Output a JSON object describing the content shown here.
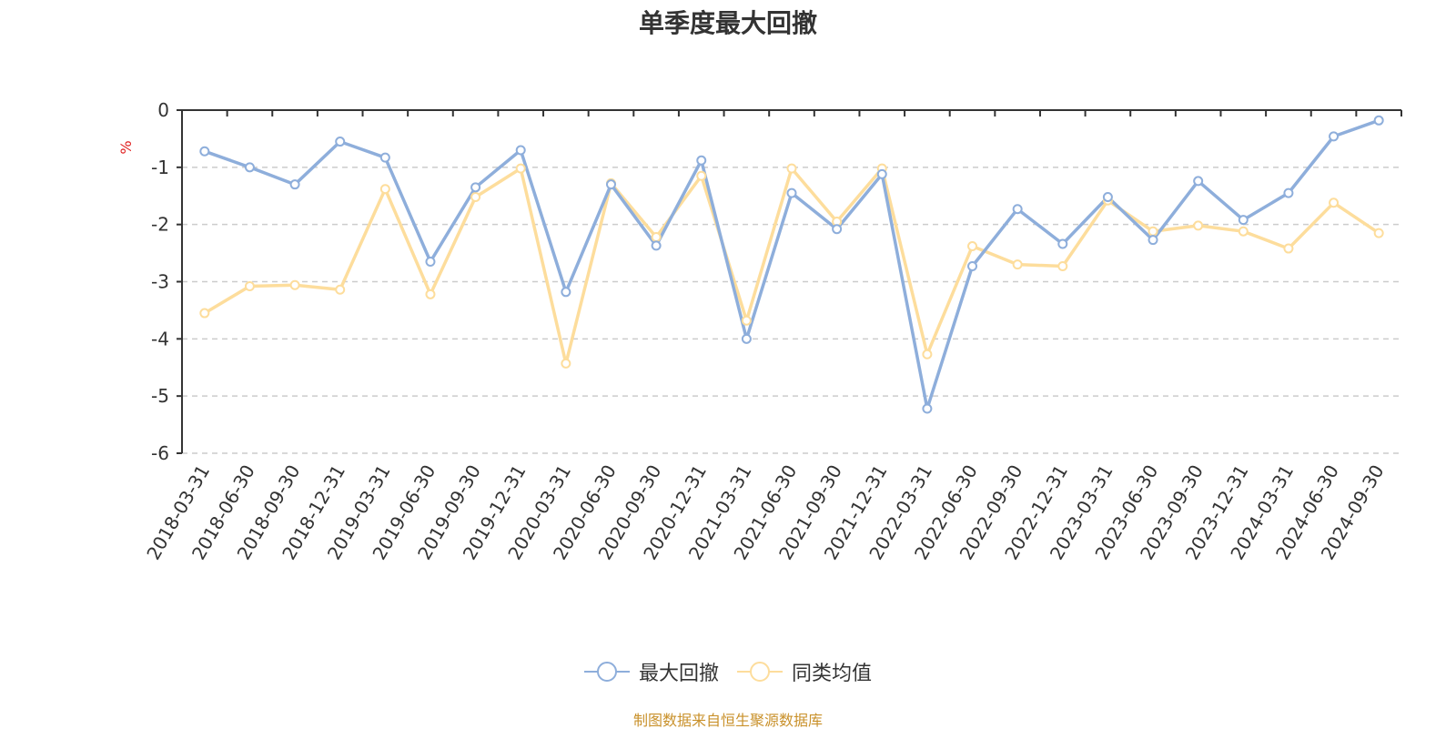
{
  "chart_data": {
    "type": "line",
    "title": "单季度最大回撤",
    "ylabel": "%",
    "ylim": [
      -6,
      0
    ],
    "yticks": [
      "0",
      "-1",
      "-2",
      "-3",
      "-4",
      "-5",
      "-6"
    ],
    "grid": true,
    "legend_position": "bottom",
    "categories": [
      "2018-03-31",
      "2018-06-30",
      "2018-09-30",
      "2018-12-31",
      "2019-03-31",
      "2019-06-30",
      "2019-09-30",
      "2019-12-31",
      "2020-03-31",
      "2020-06-30",
      "2020-09-30",
      "2020-12-31",
      "2021-03-31",
      "2021-06-30",
      "2021-09-30",
      "2021-12-31",
      "2022-03-31",
      "2022-06-30",
      "2022-09-30",
      "2022-12-31",
      "2023-03-31",
      "2023-06-30",
      "2023-09-30",
      "2023-12-31",
      "2024-03-31",
      "2024-06-30",
      "2024-09-30"
    ],
    "series": [
      {
        "name": "最大回撤",
        "color": "#8eaedb",
        "values": [
          -0.72,
          -1.0,
          -1.3,
          -0.55,
          -0.83,
          -2.65,
          -1.35,
          -0.7,
          -3.18,
          -1.3,
          -2.37,
          -0.88,
          -4.0,
          -1.45,
          -2.08,
          -1.12,
          -5.22,
          -2.73,
          -1.73,
          -2.34,
          -1.52,
          -2.27,
          -1.24,
          -1.92,
          -1.45,
          -0.46,
          -0.18
        ]
      },
      {
        "name": "同类均值",
        "color": "#fddd9c",
        "values": [
          -3.55,
          -3.08,
          -3.06,
          -3.14,
          -1.38,
          -3.22,
          -1.52,
          -1.02,
          -4.43,
          -1.28,
          -2.22,
          -1.15,
          -3.68,
          -1.02,
          -1.95,
          -1.02,
          -4.27,
          -2.38,
          -2.7,
          -2.73,
          -1.58,
          -2.12,
          -2.02,
          -2.12,
          -2.42,
          -1.62,
          -2.15
        ]
      }
    ],
    "source": "制图数据来自恒生聚源数据库"
  }
}
